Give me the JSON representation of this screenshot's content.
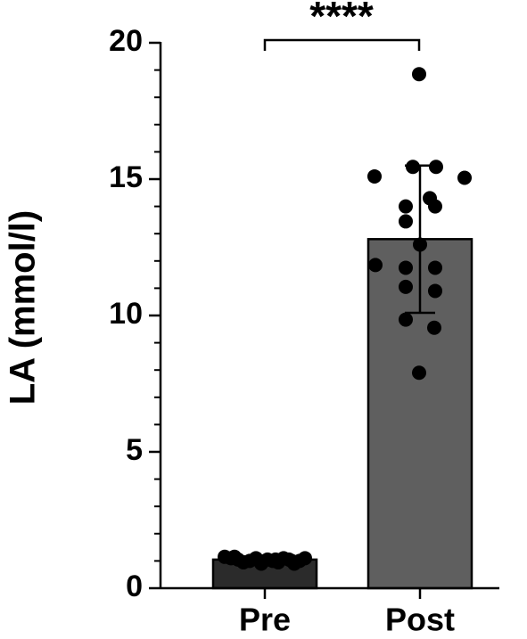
{
  "chart_data": {
    "type": "bar",
    "ylabel": "LA (mmol/l)",
    "categories": [
      "Pre",
      "Post"
    ],
    "values": [
      1.05,
      12.8
    ],
    "errors": [
      0.15,
      2.7
    ],
    "colors": [
      "#2b2b2b",
      "#5f5f5f"
    ],
    "points": [
      [
        1.15,
        1.1,
        1.05,
        0.95,
        1.0,
        1.1,
        0.9,
        1.05,
        1.0,
        0.95,
        1.1,
        1.05,
        0.9,
        1.0,
        1.1,
        1.15,
        1.05,
        1.0
      ],
      [
        18.85,
        15.1,
        15.45,
        15.45,
        15.05,
        14.3,
        14.0,
        14.0,
        13.45,
        12.6,
        11.85,
        11.75,
        11.75,
        11.05,
        10.9,
        9.85,
        9.55,
        7.9
      ]
    ],
    "annotation": "****",
    "ylim": [
      0,
      20
    ],
    "yticks": [
      0,
      5,
      10,
      15,
      20
    ],
    "yminorticks": [
      1,
      2,
      3,
      4,
      6,
      7,
      8,
      9,
      11,
      12,
      13,
      14,
      16,
      17,
      18,
      19
    ]
  }
}
